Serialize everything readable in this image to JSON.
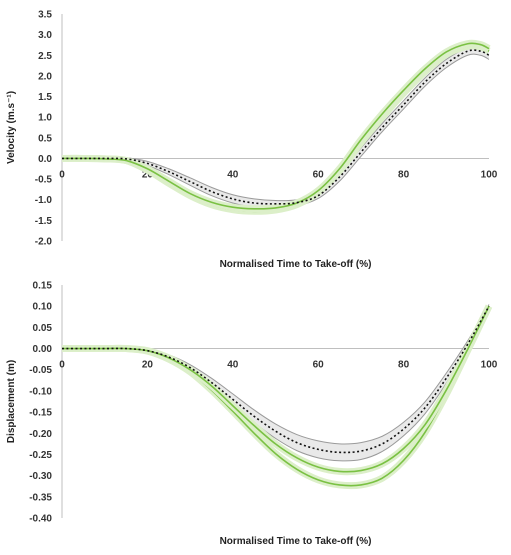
{
  "chart_data": [
    {
      "type": "line",
      "xlabel": "Normalised Time to Take-off (%)",
      "ylabel": "Velocity (m.s⁻¹)",
      "xlim": [
        0,
        100
      ],
      "ylim": [
        -2.0,
        3.5
      ],
      "xticks": [
        0,
        20,
        40,
        60,
        80,
        100
      ],
      "xtick_labels": [
        "0",
        "20",
        "40",
        "60",
        "80",
        "100"
      ],
      "yticks": [
        3.5,
        3.0,
        2.5,
        2.0,
        1.5,
        1.0,
        0.5,
        0.0,
        -0.5,
        -1.0,
        -1.5,
        -2.0
      ],
      "ytick_labels": [
        "3.5",
        "3.0",
        "2.5",
        "2.0",
        "1.5",
        "1.0",
        "0.5",
        "0.0",
        "-0.5",
        "-1.0",
        "-1.5",
        "-2.0"
      ],
      "grid": false,
      "colors": {
        "grey_band": "#9a9a9a",
        "grey_fill": "#e9e9e9",
        "green": "#7ac143",
        "green_fill": "#dcefc9",
        "dotted": "#111111"
      },
      "x": [
        0,
        5,
        10,
        15,
        20,
        25,
        30,
        35,
        40,
        45,
        50,
        55,
        60,
        65,
        70,
        75,
        80,
        85,
        90,
        95,
        98,
        100
      ],
      "series": [
        {
          "style": "dotted",
          "values": [
            0.0,
            0.0,
            0.0,
            -0.01,
            -0.12,
            -0.32,
            -0.56,
            -0.8,
            -0.98,
            -1.08,
            -1.1,
            -1.07,
            -0.9,
            -0.45,
            0.15,
            0.75,
            1.3,
            1.85,
            2.3,
            2.6,
            2.6,
            2.5
          ]
        },
        {
          "style": "grey-band",
          "upper": [
            0.05,
            0.05,
            0.04,
            0.02,
            -0.07,
            -0.25,
            -0.47,
            -0.7,
            -0.88,
            -0.98,
            -1.02,
            -1.0,
            -0.84,
            -0.36,
            0.25,
            0.85,
            1.4,
            1.95,
            2.4,
            2.68,
            2.68,
            2.6
          ],
          "lower": [
            -0.05,
            -0.05,
            -0.04,
            -0.04,
            -0.17,
            -0.39,
            -0.65,
            -0.9,
            -1.08,
            -1.18,
            -1.18,
            -1.14,
            -0.97,
            -0.55,
            0.05,
            0.65,
            1.2,
            1.75,
            2.2,
            2.5,
            2.5,
            2.4
          ]
        },
        {
          "style": "green",
          "values": [
            0.0,
            0.0,
            -0.01,
            -0.05,
            -0.28,
            -0.6,
            -0.9,
            -1.12,
            -1.24,
            -1.28,
            -1.25,
            -1.12,
            -0.82,
            -0.3,
            0.38,
            1.0,
            1.58,
            2.1,
            2.52,
            2.72,
            2.7,
            2.6
          ]
        },
        {
          "style": "green",
          "values": [
            0.0,
            0.0,
            -0.01,
            -0.05,
            -0.25,
            -0.55,
            -0.85,
            -1.06,
            -1.18,
            -1.22,
            -1.2,
            -1.08,
            -0.78,
            -0.25,
            0.45,
            1.08,
            1.65,
            2.17,
            2.58,
            2.78,
            2.76,
            2.66
          ]
        }
      ]
    },
    {
      "type": "line",
      "xlabel": "Normalised Time to Take-off (%)",
      "ylabel": "Displacement (m)",
      "xlim": [
        0,
        100
      ],
      "ylim": [
        -0.4,
        0.15
      ],
      "xticks": [
        0,
        20,
        40,
        60,
        80,
        100
      ],
      "xtick_labels": [
        "0",
        "20",
        "40",
        "60",
        "80",
        "100"
      ],
      "yticks": [
        0.15,
        0.1,
        0.05,
        0.0,
        -0.05,
        -0.1,
        -0.15,
        -0.2,
        -0.25,
        -0.3,
        -0.35,
        -0.4
      ],
      "ytick_labels": [
        "0.15",
        "0.10",
        "0.05",
        "0.00",
        "-0.05",
        "-0.10",
        "-0.15",
        "-0.20",
        "-0.25",
        "-0.30",
        "-0.35",
        "-0.40"
      ],
      "grid": false,
      "colors": {
        "grey_band": "#9a9a9a",
        "grey_fill": "#e9e9e9",
        "green": "#7ac143",
        "green_fill": "#dcefc9",
        "dotted": "#111111"
      },
      "x": [
        0,
        5,
        10,
        15,
        20,
        25,
        30,
        35,
        40,
        45,
        50,
        55,
        60,
        65,
        70,
        75,
        80,
        85,
        90,
        95,
        100
      ],
      "series": [
        {
          "style": "dotted",
          "values": [
            0.0,
            0.0,
            0.0,
            0.0,
            -0.005,
            -0.02,
            -0.045,
            -0.08,
            -0.12,
            -0.16,
            -0.195,
            -0.222,
            -0.238,
            -0.245,
            -0.242,
            -0.225,
            -0.19,
            -0.14,
            -0.07,
            0.01,
            0.1
          ]
        },
        {
          "style": "grey-band",
          "upper": [
            0.004,
            0.004,
            0.004,
            0.004,
            -0.001,
            -0.015,
            -0.038,
            -0.07,
            -0.107,
            -0.145,
            -0.178,
            -0.203,
            -0.218,
            -0.225,
            -0.222,
            -0.207,
            -0.174,
            -0.126,
            -0.058,
            0.018,
            0.104
          ],
          "lower": [
            -0.004,
            -0.004,
            -0.004,
            -0.004,
            -0.009,
            -0.025,
            -0.052,
            -0.09,
            -0.133,
            -0.175,
            -0.212,
            -0.241,
            -0.258,
            -0.265,
            -0.262,
            -0.243,
            -0.206,
            -0.154,
            -0.082,
            0.002,
            0.096
          ]
        },
        {
          "style": "green",
          "values": [
            0.0,
            0.0,
            0.0,
            0.0,
            -0.006,
            -0.025,
            -0.055,
            -0.098,
            -0.148,
            -0.2,
            -0.248,
            -0.285,
            -0.31,
            -0.322,
            -0.322,
            -0.306,
            -0.264,
            -0.198,
            -0.108,
            -0.005,
            0.1
          ]
        },
        {
          "style": "green",
          "values": [
            0.0,
            0.0,
            0.0,
            0.0,
            -0.005,
            -0.022,
            -0.05,
            -0.088,
            -0.135,
            -0.182,
            -0.225,
            -0.258,
            -0.28,
            -0.29,
            -0.288,
            -0.272,
            -0.236,
            -0.18,
            -0.098,
            -0.002,
            0.1
          ]
        }
      ]
    }
  ]
}
